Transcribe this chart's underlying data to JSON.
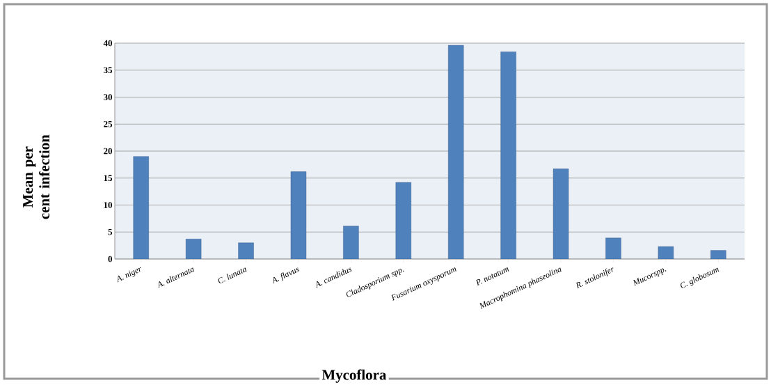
{
  "chart_data": {
    "type": "bar",
    "xlabel": "Mycoflora",
    "ylabel": "Mean per cent infection",
    "categories": [
      "A. niger",
      "A. alternata",
      "C. lunata",
      "A. flavus",
      "A. candidus",
      "Cladosporium spp.",
      "Fusarium oxysporum",
      "P. notatum",
      "Macrophomina phaseolina",
      "R. stolonifer",
      "Mucorspp.",
      "C. globosum"
    ],
    "values": [
      19.0,
      3.7,
      3.0,
      16.2,
      6.1,
      14.2,
      39.6,
      38.4,
      16.7,
      3.9,
      2.3,
      1.6
    ],
    "color": "#4f81bd",
    "ylim": [
      0,
      40
    ],
    "yticks": [
      0,
      5,
      10,
      15,
      20,
      25,
      30,
      35,
      40
    ],
    "grid": "y"
  }
}
